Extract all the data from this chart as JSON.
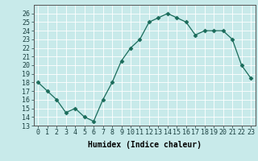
{
  "x": [
    0,
    1,
    2,
    3,
    4,
    5,
    6,
    7,
    8,
    9,
    10,
    11,
    12,
    13,
    14,
    15,
    16,
    17,
    18,
    19,
    20,
    21,
    22,
    23
  ],
  "y": [
    18.0,
    17.0,
    16.0,
    14.5,
    15.0,
    14.0,
    13.5,
    16.0,
    18.0,
    20.5,
    22.0,
    23.0,
    25.0,
    25.5,
    26.0,
    25.5,
    25.0,
    23.5,
    24.0,
    24.0,
    24.0,
    23.0,
    20.0,
    18.5
  ],
  "xlabel": "Humidex (Indice chaleur)",
  "ylim": [
    13,
    27
  ],
  "xlim": [
    -0.5,
    23.5
  ],
  "yticks": [
    13,
    14,
    15,
    16,
    17,
    18,
    19,
    20,
    21,
    22,
    23,
    24,
    25,
    26
  ],
  "xticks": [
    0,
    1,
    2,
    3,
    4,
    5,
    6,
    7,
    8,
    9,
    10,
    11,
    12,
    13,
    14,
    15,
    16,
    17,
    18,
    19,
    20,
    21,
    22,
    23
  ],
  "xtick_labels": [
    "0",
    "1",
    "2",
    "3",
    "4",
    "5",
    "6",
    "7",
    "8",
    "9",
    "10",
    "11",
    "12",
    "13",
    "14",
    "15",
    "16",
    "17",
    "18",
    "19",
    "20",
    "21",
    "22",
    "23"
  ],
  "line_color": "#1a6b5a",
  "marker": "D",
  "marker_size": 2.5,
  "bg_color": "#c8eaea",
  "grid_color": "#b0d8d8",
  "label_fontsize": 7,
  "tick_fontsize": 6
}
